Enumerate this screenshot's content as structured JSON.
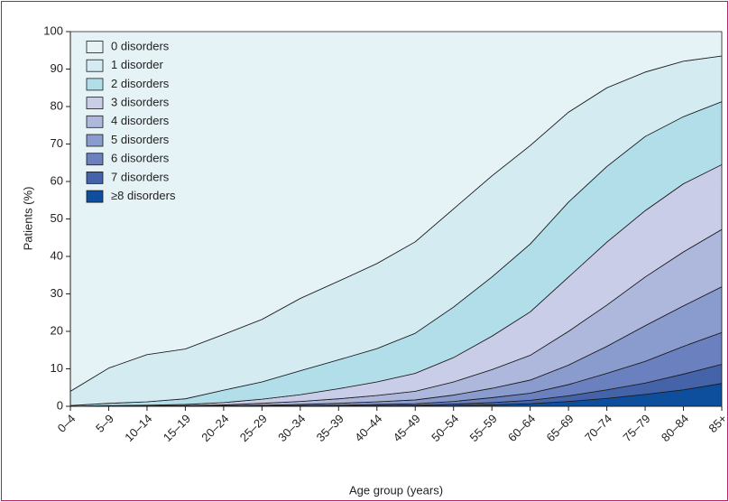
{
  "chart_data": {
    "type": "stacked_area",
    "xlabel": "Age group (years)",
    "ylabel": "Patients (%)",
    "categories": [
      "0–4",
      "5–9",
      "10–14",
      "15–19",
      "20–24",
      "25–29",
      "30–34",
      "35–39",
      "40–44",
      "45–49",
      "50–54",
      "55–59",
      "60–64",
      "65–69",
      "70–74",
      "75–79",
      "80–84",
      "85+"
    ],
    "ylim": [
      0,
      100
    ],
    "yticks": [
      0,
      10,
      20,
      30,
      40,
      50,
      60,
      70,
      80,
      90,
      100
    ],
    "legend": "upper left",
    "series": [
      {
        "name": "0 disorders",
        "color": "#e6f3f6",
        "values": [
          96,
          89.8,
          86.2,
          84.7,
          80.8,
          76.8,
          71.2,
          66.6,
          61.9,
          56.1,
          47.3,
          38.5,
          30.4,
          21.5,
          15,
          10.8,
          7.9,
          6.5
        ]
      },
      {
        "name": "1 disorder",
        "color": "#d3ebf1",
        "values": [
          3.8,
          9.4,
          12.6,
          13.3,
          14.9,
          16.7,
          19.3,
          21,
          22.7,
          24.4,
          26.2,
          27,
          26.3,
          24,
          21,
          17.2,
          14.8,
          12.2
        ]
      },
      {
        "name": "2 disorders",
        "color": "#b2deea",
        "values": [
          0.2,
          0.6,
          0.9,
          1.5,
          3.3,
          4.6,
          6.4,
          7.7,
          8.9,
          10.7,
          13.5,
          15.8,
          18.1,
          20,
          20.2,
          19.8,
          17.9,
          16.8
        ]
      },
      {
        "name": "3 disorders",
        "color": "#c9cde7",
        "values": [
          0,
          0.2,
          0.2,
          0.3,
          0.6,
          1.1,
          1.8,
          2.7,
          3.6,
          4.8,
          6.5,
          8.9,
          11.6,
          14.5,
          16.8,
          17.7,
          18.2,
          17.3
        ]
      },
      {
        "name": "4 disorders",
        "color": "#adb8dc",
        "values": [
          0,
          0,
          0.1,
          0.1,
          0.2,
          0.5,
          0.8,
          1.2,
          1.7,
          2.3,
          3.5,
          5,
          6.6,
          9,
          11,
          13,
          14.4,
          15.3
        ]
      },
      {
        "name": "5 disorders",
        "color": "#8a9bcd",
        "values": [
          0,
          0,
          0,
          0.1,
          0.1,
          0.2,
          0.3,
          0.5,
          0.7,
          1.0,
          1.7,
          2.5,
          3.5,
          5.2,
          7.2,
          9.5,
          10.8,
          12.2
        ]
      },
      {
        "name": "6 disorders",
        "color": "#6a80bf",
        "values": [
          0,
          0,
          0,
          0,
          0.1,
          0.1,
          0.1,
          0.2,
          0.3,
          0.4,
          0.7,
          1.3,
          1.9,
          3.0,
          4.4,
          5.8,
          7.4,
          8.5
        ]
      },
      {
        "name": "7 disorders",
        "color": "#4463a8",
        "values": [
          0,
          0,
          0,
          0,
          0,
          0,
          0.1,
          0.1,
          0.1,
          0.2,
          0.4,
          0.6,
          0.9,
          1.5,
          2.3,
          3,
          4.2,
          5.1
        ]
      },
      {
        "name": "≥8 disorders",
        "color": "#0d4f9c",
        "values": [
          0,
          0,
          0,
          0,
          0,
          0,
          0,
          0,
          0.1,
          0.1,
          0.2,
          0.4,
          0.7,
          1.3,
          2.1,
          3.2,
          4.4,
          6.1
        ]
      }
    ]
  }
}
